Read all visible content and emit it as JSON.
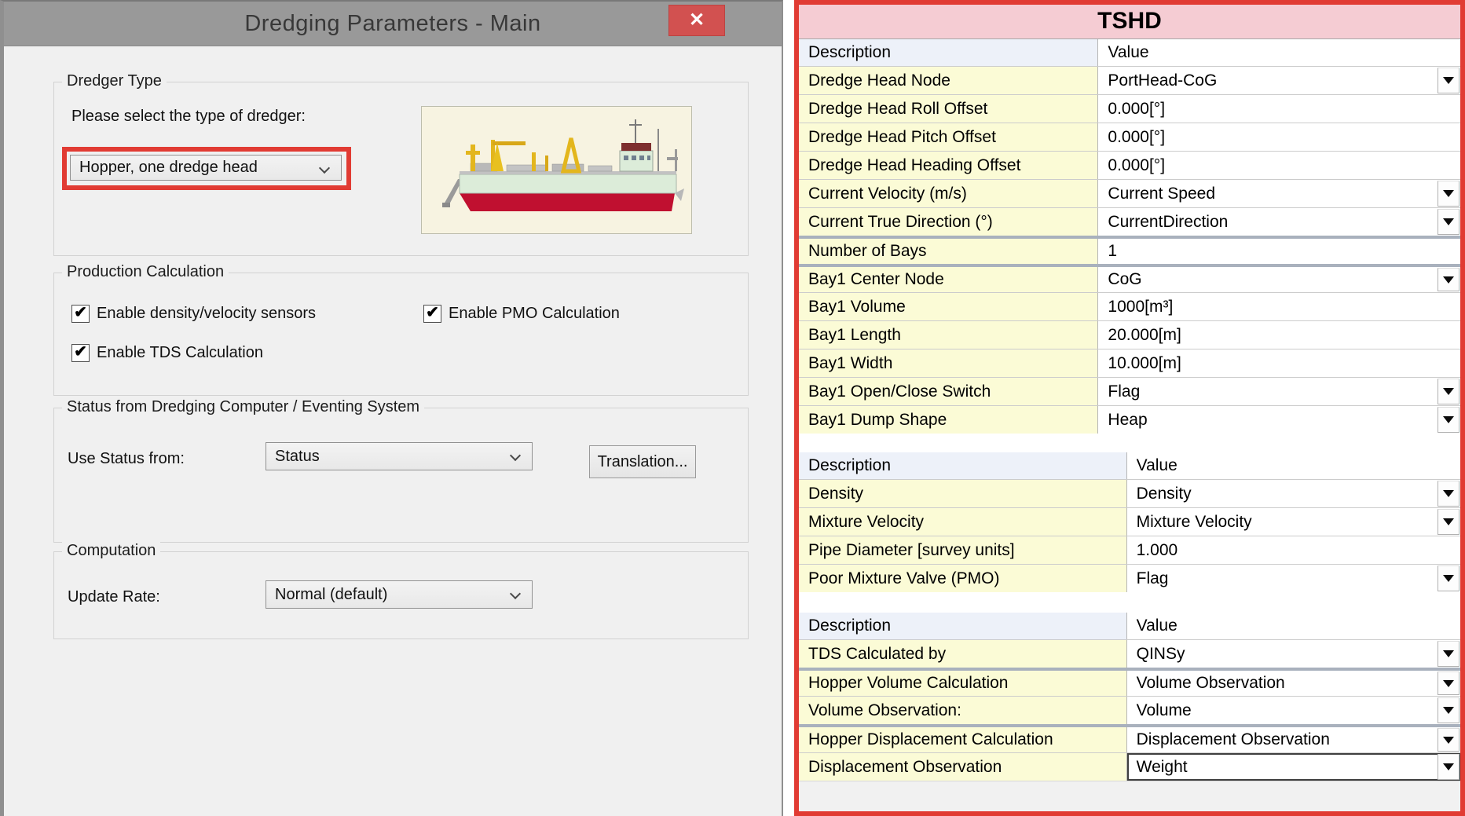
{
  "dialog": {
    "title": "Dredging Parameters - Main",
    "close_glyph": "✕",
    "dredger_type": {
      "label": "Dredger Type",
      "prompt": "Please select the type of dredger:",
      "dropdown_value": "Hopper, one dredge head"
    },
    "production": {
      "label": "Production Calculation",
      "checkboxes": [
        {
          "label": "Enable density/velocity sensors",
          "checked": true
        },
        {
          "label": "Enable PMO Calculation",
          "checked": true
        },
        {
          "label": "Enable TDS Calculation",
          "checked": true
        }
      ]
    },
    "status": {
      "label": "Status from Dredging Computer / Eventing System",
      "field_label": "Use Status from:",
      "dropdown_value": "Status",
      "button_label": "Translation..."
    },
    "computation": {
      "label": "Computation",
      "field_label": "Update Rate:",
      "dropdown_value": "Normal (default)"
    }
  },
  "table": {
    "title": "TSHD",
    "sections": [
      {
        "header": {
          "description": "Description",
          "value": "Value"
        },
        "rows": [
          {
            "desc": "Dredge Head Node",
            "value": "PortHead-CoG",
            "dropdown": true
          },
          {
            "desc": "Dredge Head Roll Offset",
            "value": "0.000[°]",
            "dropdown": false
          },
          {
            "desc": "Dredge Head Pitch Offset",
            "value": "0.000[°]",
            "dropdown": false
          },
          {
            "desc": "Dredge Head Heading Offset",
            "value": "0.000[°]",
            "dropdown": false
          },
          {
            "desc": "Current Velocity (m/s)",
            "value": "Current Speed",
            "dropdown": true
          },
          {
            "desc": "Current True Direction (°)",
            "value": "CurrentDirection",
            "dropdown": true
          },
          {
            "desc": "Number of Bays",
            "value": "1",
            "dropdown": false,
            "sep_before": true
          },
          {
            "desc": "Bay1 Center Node",
            "value": "CoG",
            "dropdown": true,
            "sep_before": true
          },
          {
            "desc": "Bay1 Volume",
            "value": "1000[m³]",
            "dropdown": false
          },
          {
            "desc": "Bay1 Length",
            "value": "20.000[m]",
            "dropdown": false
          },
          {
            "desc": "Bay1 Width",
            "value": "10.000[m]",
            "dropdown": false
          },
          {
            "desc": "Bay1 Open/Close Switch",
            "value": "Flag",
            "dropdown": true
          },
          {
            "desc": "Bay1 Dump Shape",
            "value": "Heap",
            "dropdown": true
          }
        ]
      },
      {
        "header": {
          "description": "Description",
          "value": "Value"
        },
        "rows": [
          {
            "desc": "Density",
            "value": "Density",
            "dropdown": true
          },
          {
            "desc": "Mixture Velocity",
            "value": "Mixture Velocity",
            "dropdown": true
          },
          {
            "desc": "Pipe Diameter [survey units]",
            "value": "1.000",
            "dropdown": false
          },
          {
            "desc": "Poor Mixture Valve (PMO)",
            "value": "Flag",
            "dropdown": true
          }
        ]
      },
      {
        "header": {
          "description": "Description",
          "value": "Value"
        },
        "rows": [
          {
            "desc": "TDS Calculated by",
            "value": "QINSy",
            "dropdown": true
          },
          {
            "desc": "Hopper Volume Calculation",
            "value": "Volume Observation",
            "dropdown": true,
            "sep_before": true
          },
          {
            "desc": "Volume Observation:",
            "value": "Volume",
            "dropdown": true
          },
          {
            "desc": "Hopper Displacement Calculation",
            "value": "Displacement Observation",
            "dropdown": true,
            "sep_before": true
          },
          {
            "desc": "Displacement Observation",
            "value": "Weight",
            "dropdown": true,
            "focused": true
          }
        ]
      }
    ]
  },
  "colors": {
    "accent_red": "#e13b33",
    "close_button_red": "#d25150",
    "table_title_pink": "#f5ccd3",
    "header_row_blue": "#edf1f9",
    "description_yellow": "#fbfbd6",
    "titlebar_gray": "#999999",
    "dialog_gray": "#f0f0f0"
  }
}
